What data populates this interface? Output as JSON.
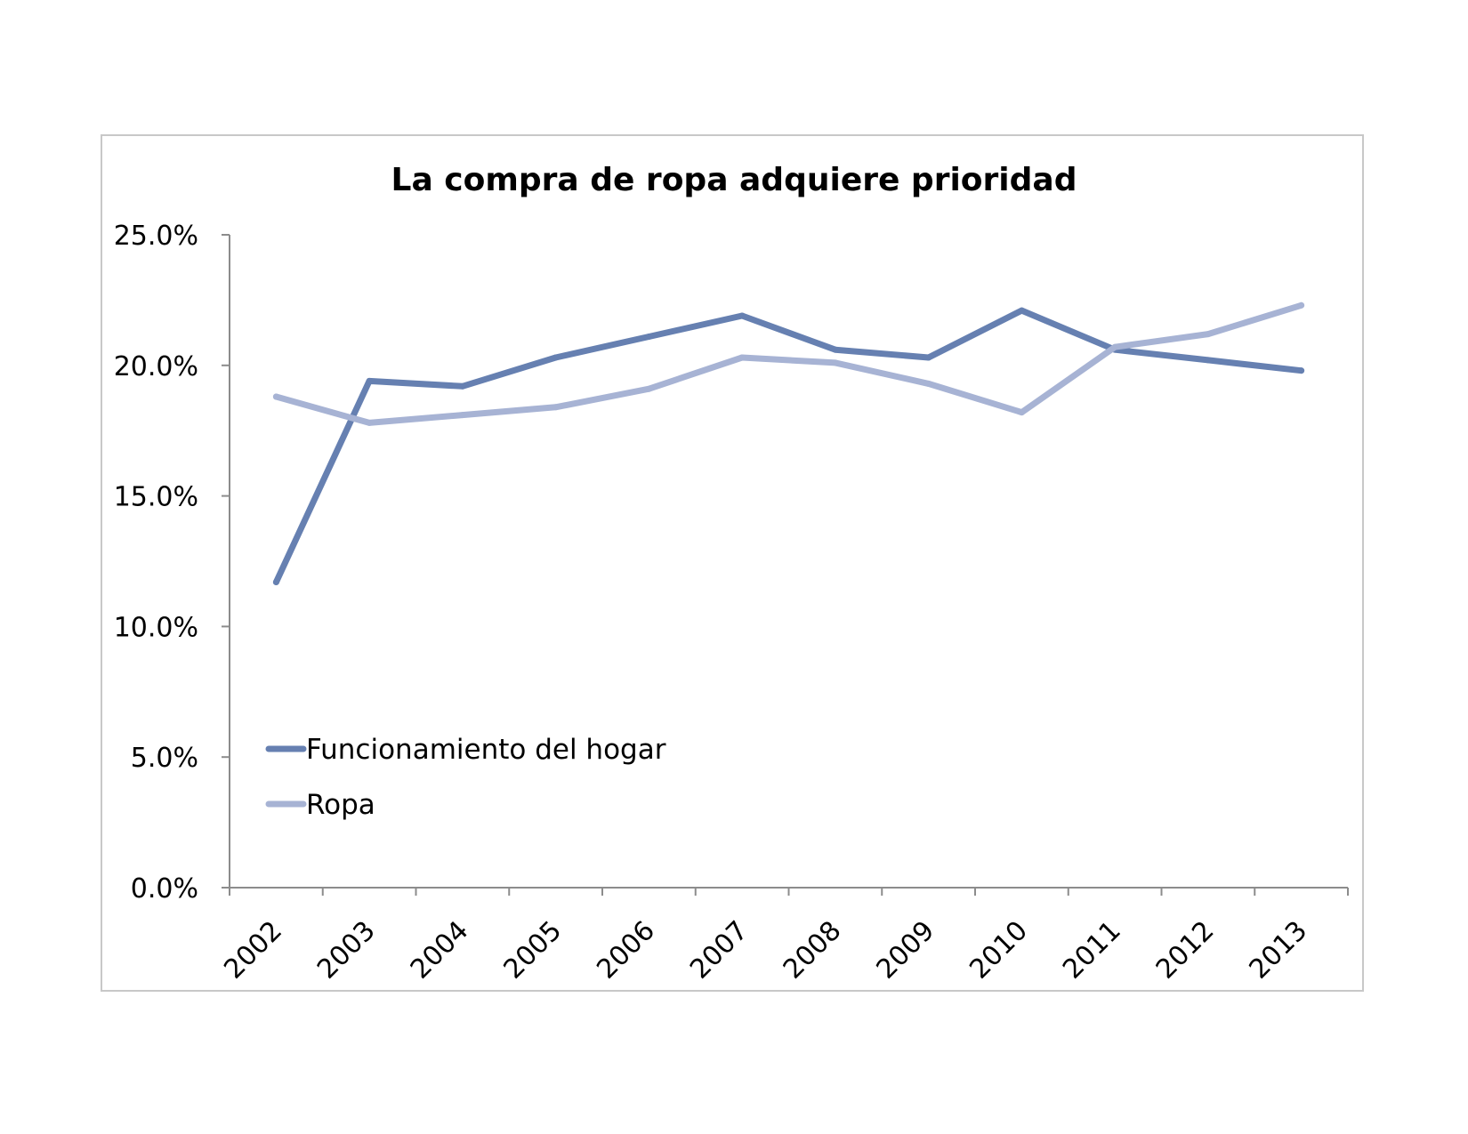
{
  "chart_data": {
    "type": "line",
    "title": "La compra de ropa adquiere prioridad",
    "xlabel": "",
    "ylabel": "",
    "categories": [
      "2002",
      "2003",
      "2004",
      "2005",
      "2006",
      "2007",
      "2008",
      "2009",
      "2010",
      "2011",
      "2012",
      "2013"
    ],
    "y_tick_labels": [
      "0.0%",
      "5.0%",
      "10.0%",
      "15.0%",
      "20.0%",
      "25.0%"
    ],
    "y_ticks": [
      0,
      5,
      10,
      15,
      20,
      25
    ],
    "ylim": [
      0,
      25
    ],
    "grid": false,
    "legend_position": "lower-left",
    "series": [
      {
        "name": "Funcionamiento del hogar",
        "color": "#6680b1",
        "values": [
          11.7,
          19.4,
          19.2,
          20.3,
          21.1,
          21.9,
          20.6,
          20.3,
          22.1,
          20.6,
          20.2,
          19.8
        ]
      },
      {
        "name": "Ropa",
        "color": "#a7b3d4",
        "values": [
          18.8,
          17.8,
          18.1,
          18.4,
          19.1,
          20.3,
          20.1,
          19.3,
          18.2,
          20.7,
          21.2,
          22.3
        ]
      }
    ]
  }
}
